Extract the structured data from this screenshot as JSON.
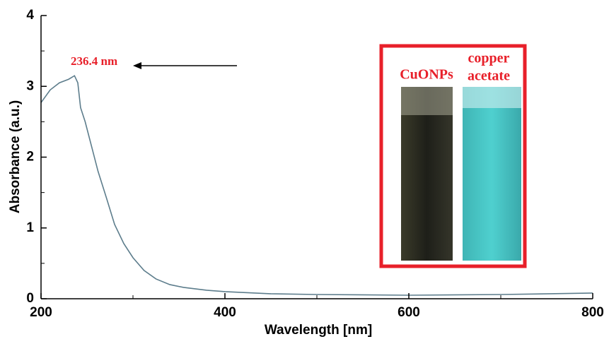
{
  "chart_data": {
    "type": "line",
    "xlabel": "Wavelength [nm]",
    "ylabel": "Absorbance (a.u.)",
    "x": [
      200,
      210,
      220,
      230,
      236.4,
      240,
      243,
      248,
      255,
      262,
      271,
      280,
      290,
      300,
      312,
      325,
      340,
      355,
      380,
      400,
      450,
      500,
      600,
      700,
      800
    ],
    "series": [
      {
        "color": "#5d7d8c",
        "values": [
          2.77,
          2.95,
          3.05,
          3.1,
          3.15,
          3.05,
          2.7,
          2.5,
          2.15,
          1.8,
          1.43,
          1.05,
          0.78,
          0.58,
          0.4,
          0.28,
          0.2,
          0.16,
          0.12,
          0.1,
          0.07,
          0.06,
          0.05,
          0.06,
          0.08
        ]
      }
    ],
    "xlim": [
      200,
      800
    ],
    "ylim": [
      0,
      4
    ],
    "xticks": [
      200,
      400,
      600,
      800
    ],
    "yticks": [
      0,
      1,
      2,
      3,
      4
    ],
    "xminor_ticks": [
      300,
      500,
      700
    ],
    "yminor_ticks": [
      0.5,
      1.5,
      2.5,
      3.5
    ],
    "annotation": "236.4 nm",
    "inset": {
      "left_label": "CuONPs",
      "right_label": [
        "copper",
        "acetate"
      ]
    }
  }
}
